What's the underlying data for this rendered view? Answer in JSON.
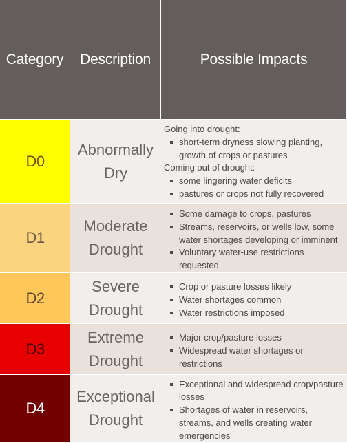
{
  "headers": {
    "category": "Category",
    "description": "Description",
    "impacts": "Possible Impacts"
  },
  "rows": [
    {
      "category": "D0",
      "description": [
        "Abnormally",
        "Dry"
      ],
      "color": "#ffff00",
      "text_color": "#7a5200",
      "sections": [
        {
          "heading": "Going into drought:",
          "items": [
            "short-term dryness slowing planting, growth of crops or pastures"
          ]
        },
        {
          "heading": "Coming out of drought:",
          "items": [
            "some lingering water deficits",
            "pastures or crops not fully recovered"
          ]
        }
      ]
    },
    {
      "category": "D1",
      "description": [
        "Moderate",
        "Drought"
      ],
      "color": "#fcd37f",
      "text_color": "#6a5a48",
      "items": [
        "Some damage to crops, pastures",
        "Streams, reservoirs, or wells low, some water shortages developing or imminent",
        "Voluntary water-use restrictions requested"
      ]
    },
    {
      "category": "D2",
      "description": [
        "Severe",
        "Drought"
      ],
      "color": "#ffc65a",
      "text_color": "#5f4530",
      "items": [
        "Crop or pasture losses likely",
        "Water shortages common",
        "Water restrictions imposed"
      ]
    },
    {
      "category": "D3",
      "description": [
        "Extreme",
        "Drought"
      ],
      "color": "#e60000",
      "text_color": "#4a0000",
      "items": [
        "Major crop/pasture losses",
        "Widespread water shortages or restrictions"
      ]
    },
    {
      "category": "D4",
      "description": [
        "Exceptional",
        "Drought"
      ],
      "color": "#730000",
      "text_color": "#ffffff",
      "items": [
        "Exceptional and widespread crop/pasture losses",
        "Shortages of water in reservoirs, streams, and wells creating water emergencies"
      ]
    }
  ]
}
